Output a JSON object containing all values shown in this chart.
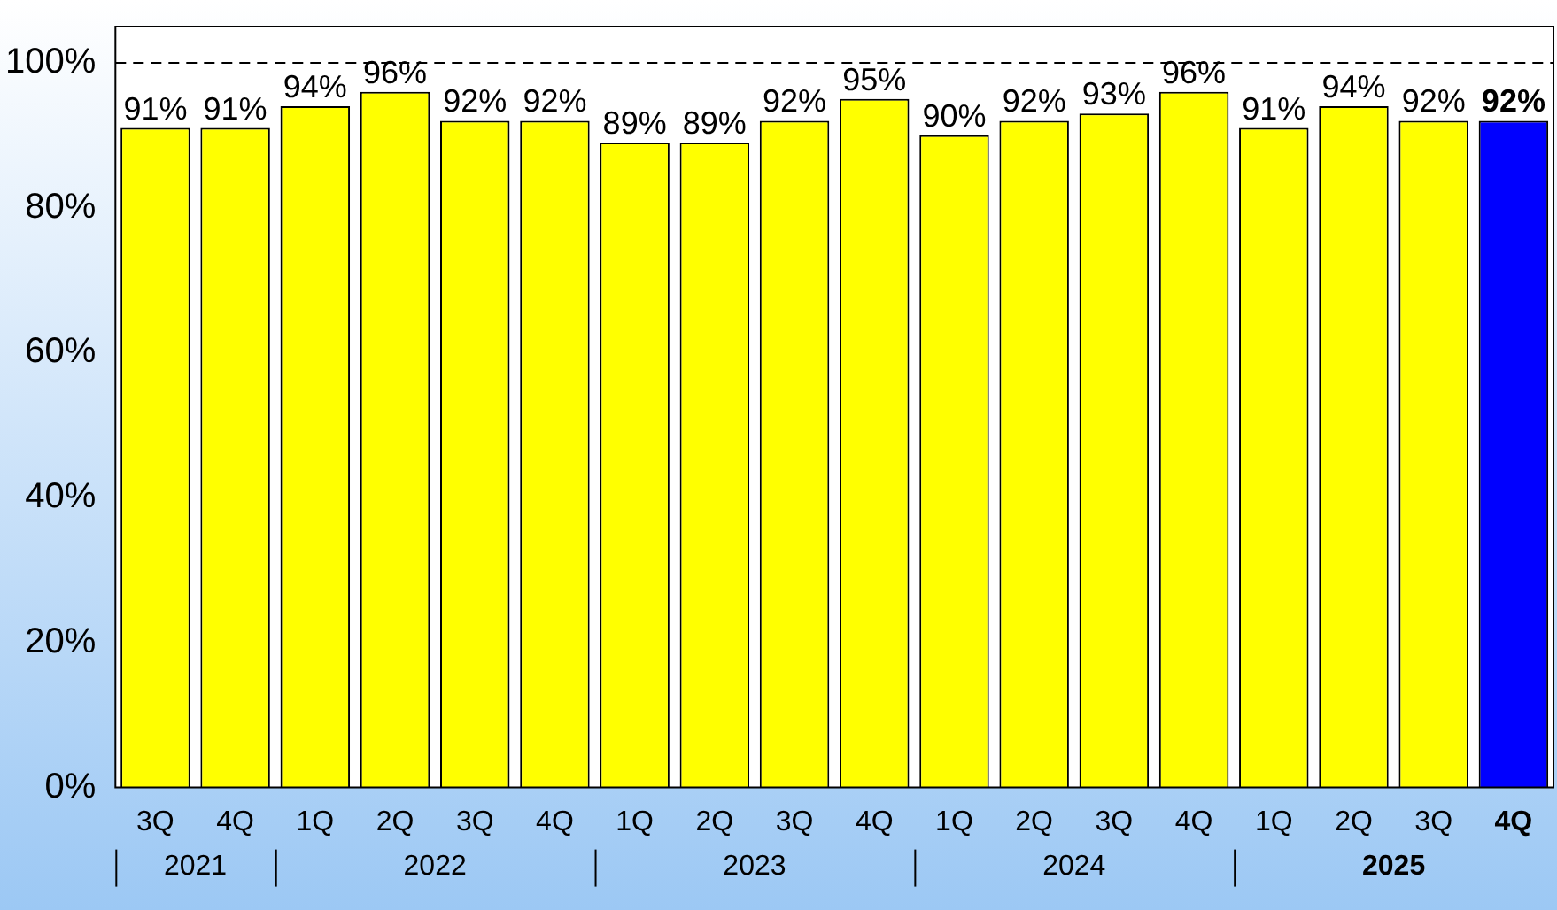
{
  "chart_data": {
    "type": "bar",
    "categories": [
      "3Q",
      "4Q",
      "1Q",
      "2Q",
      "3Q",
      "4Q",
      "1Q",
      "2Q",
      "3Q",
      "4Q",
      "1Q",
      "2Q",
      "3Q",
      "4Q",
      "1Q",
      "2Q",
      "3Q",
      "4Q"
    ],
    "values": [
      91,
      91,
      94,
      96,
      92,
      92,
      89,
      89,
      92,
      95,
      90,
      92,
      93,
      96,
      91,
      94,
      92,
      92
    ],
    "value_labels": [
      "91%",
      "91%",
      "94%",
      "96%",
      "92%",
      "92%",
      "89%",
      "89%",
      "92%",
      "95%",
      "90%",
      "92%",
      "93%",
      "96%",
      "91%",
      "94%",
      "92%",
      "92%"
    ],
    "colors": [
      "#ffff00",
      "#ffff00",
      "#ffff00",
      "#ffff00",
      "#ffff00",
      "#ffff00",
      "#ffff00",
      "#ffff00",
      "#ffff00",
      "#ffff00",
      "#ffff00",
      "#ffff00",
      "#ffff00",
      "#ffff00",
      "#ffff00",
      "#ffff00",
      "#ffff00",
      "#0000ff"
    ],
    "annotations": [
      "2021",
      "2022",
      "2023",
      "2024",
      "2025"
    ],
    "ylim": [
      0,
      105
    ],
    "yticks": [
      {
        "value": 0,
        "label": "0%"
      },
      {
        "value": 20,
        "label": "20%"
      },
      {
        "value": 40,
        "label": "40%"
      },
      {
        "value": 60,
        "label": "60%"
      },
      {
        "value": 80,
        "label": "80%"
      },
      {
        "value": 100,
        "label": "100%"
      }
    ],
    "ref_lines": [
      {
        "axis": "y",
        "value": 100,
        "color": "#000000",
        "line_style": "dashed"
      }
    ],
    "grid": false,
    "legend": false
  }
}
